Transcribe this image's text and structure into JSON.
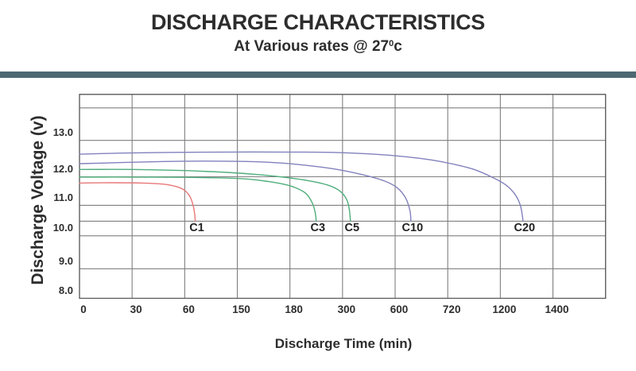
{
  "header": {
    "title": "DISCHARGE CHARACTERISTICS",
    "subtitle_prefix": "At Various rates @ 27",
    "subtitle_sup": "0",
    "subtitle_suffix": "c",
    "divider_color": "#4d6872"
  },
  "chart_data": {
    "type": "line",
    "title": "DISCHARGE CHARACTERISTICS",
    "subtitle": "At Various rates @ 27°c",
    "xlabel": "Discharge Time (min)",
    "ylabel": "Discharge Voltage (v)",
    "x_tick_labels": [
      "0",
      "30",
      "60",
      "150",
      "180",
      "300",
      "600",
      "720",
      "1200",
      "1400"
    ],
    "x_axis_note": "non-linear time axis: the 10 tick values are drawn at equal spacing (categorical); curve x coordinates below are in tick-index units (0 = tick '0', 9 = tick '1400', 10 = unlabeled right border)",
    "y_tick_labels": [
      "13.0",
      "12.0",
      "11.0",
      "10.0",
      "9.0",
      "8.0"
    ],
    "ylim": [
      8.0,
      14.0
    ],
    "grid": true,
    "legend_position": "labels at curve cutoff points",
    "cutoff_voltage_approx": 10.5,
    "colors": {
      "grid": "#7f7f7f",
      "border": "#5a5a5a",
      "tick_text": "#2d2d2d"
    },
    "series": [
      {
        "name": "C1",
        "color": "#e87878",
        "plateau_voltage": 11.78,
        "end_time_min_approx": 70,
        "points": [
          [
            0,
            11.78
          ],
          [
            0.6,
            11.79
          ],
          [
            1.2,
            11.78
          ],
          [
            1.6,
            11.74
          ],
          [
            1.85,
            11.65
          ],
          [
            2.0,
            11.52
          ],
          [
            2.1,
            11.3
          ],
          [
            2.16,
            11.0
          ],
          [
            2.19,
            10.72
          ],
          [
            2.2,
            10.5
          ]
        ]
      },
      {
        "name": "C3",
        "color": "#4fae7c",
        "plateau_voltage": 11.99,
        "end_time_min_approx": 240,
        "points": [
          [
            0,
            11.99
          ],
          [
            1,
            11.99
          ],
          [
            2,
            11.98
          ],
          [
            2.7,
            11.96
          ],
          [
            3.2,
            11.92
          ],
          [
            3.6,
            11.83
          ],
          [
            3.9,
            11.73
          ],
          [
            4.1,
            11.62
          ],
          [
            4.3,
            11.42
          ],
          [
            4.42,
            11.1
          ],
          [
            4.48,
            10.78
          ],
          [
            4.5,
            10.5
          ]
        ]
      },
      {
        "name": "C5",
        "color": "#4fae7c",
        "plateau_voltage": 12.2,
        "end_time_min_approx": 310,
        "points": [
          [
            0,
            12.2
          ],
          [
            1,
            12.2
          ],
          [
            2,
            12.17
          ],
          [
            2.8,
            12.12
          ],
          [
            3.4,
            12.06
          ],
          [
            3.9,
            11.98
          ],
          [
            4.3,
            11.88
          ],
          [
            4.7,
            11.72
          ],
          [
            4.95,
            11.5
          ],
          [
            5.08,
            11.2
          ],
          [
            5.13,
            10.85
          ],
          [
            5.15,
            10.5
          ]
        ]
      },
      {
        "name": "C10",
        "color": "#8181bd",
        "plateau_voltage": 12.4,
        "end_time_min_approx": 630,
        "points": [
          [
            0,
            12.36
          ],
          [
            0.8,
            12.39
          ],
          [
            1.6,
            12.42
          ],
          [
            2.4,
            12.43
          ],
          [
            3.2,
            12.42
          ],
          [
            3.8,
            12.38
          ],
          [
            4.4,
            12.3
          ],
          [
            4.9,
            12.2
          ],
          [
            5.4,
            12.05
          ],
          [
            5.8,
            11.85
          ],
          [
            6.05,
            11.6
          ],
          [
            6.2,
            11.25
          ],
          [
            6.28,
            10.85
          ],
          [
            6.3,
            10.5
          ]
        ]
      },
      {
        "name": "C20",
        "color": "#8181bd",
        "plateau_voltage": 12.65,
        "end_time_min_approx": 1250,
        "points": [
          [
            0,
            12.62
          ],
          [
            0.8,
            12.65
          ],
          [
            1.8,
            12.67
          ],
          [
            2.8,
            12.68
          ],
          [
            3.8,
            12.68
          ],
          [
            4.8,
            12.67
          ],
          [
            5.6,
            12.62
          ],
          [
            6.2,
            12.55
          ],
          [
            6.7,
            12.46
          ],
          [
            7.1,
            12.35
          ],
          [
            7.5,
            12.2
          ],
          [
            7.85,
            11.98
          ],
          [
            8.1,
            11.72
          ],
          [
            8.28,
            11.38
          ],
          [
            8.38,
            11.0
          ],
          [
            8.42,
            10.65
          ],
          [
            8.43,
            10.5
          ]
        ]
      }
    ]
  }
}
